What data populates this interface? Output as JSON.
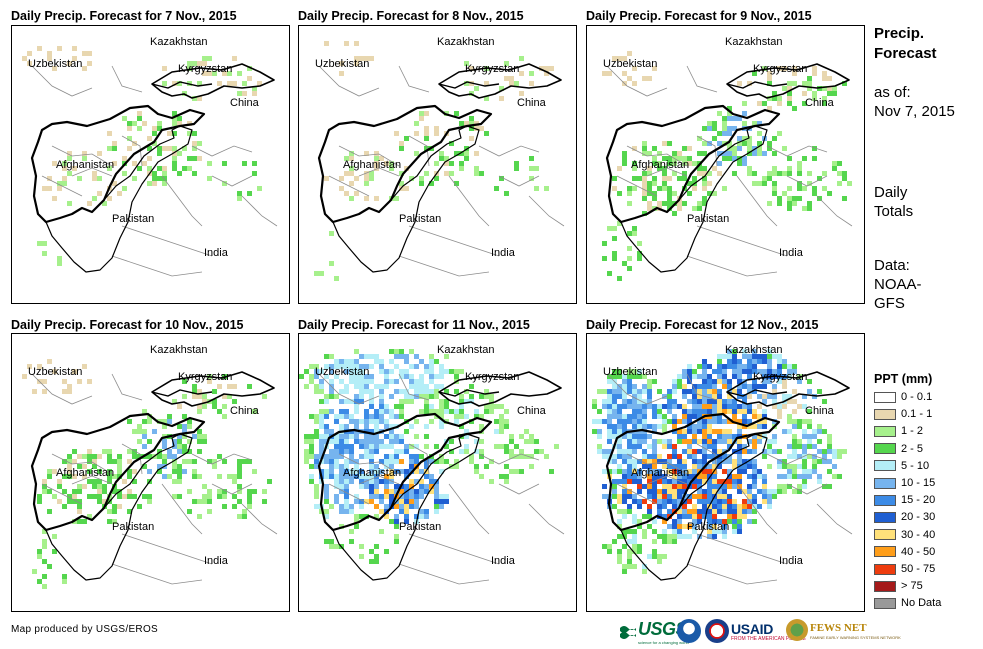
{
  "panels": [
    {
      "title": "Daily Precip. Forecast for 7 Nov., 2015",
      "intensity": 0
    },
    {
      "title": "Daily Precip. Forecast for 8 Nov., 2015",
      "intensity": 0
    },
    {
      "title": "Daily Precip. Forecast for 9 Nov., 2015",
      "intensity": 1
    },
    {
      "title": "Daily Precip. Forecast for 10 Nov., 2015",
      "intensity": 1
    },
    {
      "title": "Daily Precip. Forecast for 11 Nov., 2015",
      "intensity": 2
    },
    {
      "title": "Daily Precip. Forecast for 12 Nov., 2015",
      "intensity": 3
    }
  ],
  "map_labels": {
    "kazakhstan": "Kazakhstan",
    "uzbekistan": "Uzbekistan",
    "kyrgyzstan": "Kyrgyzstan",
    "china": "China",
    "afghanistan": "Afghanistan",
    "pakistan": "Pakistan",
    "india": "India"
  },
  "sidebar": {
    "title_line1": "Precip.",
    "title_line2": "Forecast",
    "asof_line1": "as of:",
    "asof_line2": "Nov 7, 2015",
    "totals_line1": "Daily",
    "totals_line2": "Totals",
    "data_line1": "Data:",
    "data_line2": "NOAA-",
    "data_line3": "GFS"
  },
  "legend": {
    "title": "PPT (mm)",
    "items": [
      {
        "label": "0 - 0.1",
        "color": "#ffffff"
      },
      {
        "label": "0.1 - 1",
        "color": "#e8d7b0"
      },
      {
        "label": "1 - 2",
        "color": "#a6f08c"
      },
      {
        "label": "2 - 5",
        "color": "#55d64e"
      },
      {
        "label": "5 - 10",
        "color": "#b4eef7"
      },
      {
        "label": "10 - 15",
        "color": "#76b4ee"
      },
      {
        "label": "15 - 20",
        "color": "#3c8be6"
      },
      {
        "label": "20 - 30",
        "color": "#1f5fd2"
      },
      {
        "label": "30 - 40",
        "color": "#ffe17a"
      },
      {
        "label": "40 - 50",
        "color": "#ff9e1a"
      },
      {
        "label": "50 - 75",
        "color": "#ee3c0e"
      },
      {
        "label": "> 75",
        "color": "#a51a1a"
      },
      {
        "label": "No Data",
        "color": "#999999"
      }
    ]
  },
  "footer": {
    "credit": "Map produced by USGS/EROS",
    "usgs": "USGS",
    "usgs_tagline": "science for a changing world",
    "usaid": "USAID",
    "usaid_tagline": "FROM THE AMERICAN PEOPLE",
    "fews": "FEWS NET",
    "fews_tagline": "FAMINE EARLY WARNING SYSTEMS NETWORK"
  }
}
